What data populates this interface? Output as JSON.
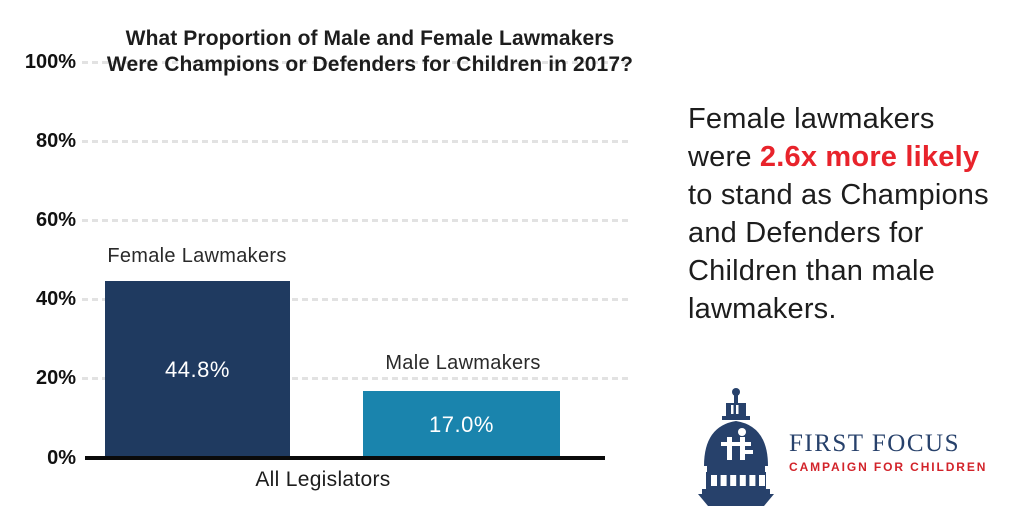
{
  "chart_data": {
    "type": "bar",
    "title": "What Proportion of Male and Female Lawmakers Were Champions or Defenders for Children in 2017?",
    "title_lines": {
      "line1": "What Proportion of Male and Female Lawmakers",
      "line2": "Were Champions or Defenders for Children in 2017?"
    },
    "categories": [
      "All Legislators"
    ],
    "series": [
      {
        "name": "Female Lawmakers",
        "values": [
          44.8
        ],
        "label": "44.8%",
        "color": "#1f3a60"
      },
      {
        "name": "Male Lawmakers",
        "values": [
          17.0
        ],
        "label": "17.0%",
        "color": "#1a84ad"
      }
    ],
    "xlabel": "All Legislators",
    "ylabel": "",
    "ylim": [
      0,
      100
    ],
    "yticks": {
      "t100": "100%",
      "t80": "80%",
      "t60": "60%",
      "t40": "40%",
      "t20": "20%",
      "t0": "0%"
    },
    "grid": "horizontal dashed, light gray",
    "legend": "none, series labeled above bars"
  },
  "annotation": {
    "part1": "Female lawmakers were ",
    "highlight": "2.6x more likely",
    "part2": " to stand as Champions and Defenders for Children than male lawmakers.",
    "highlight_color": "#e8232b",
    "text_color": "#1d1d1d"
  },
  "logo": {
    "icon": "capitol-dome-icon",
    "name": "FIRST FOCUS",
    "tagline": "CAMPAIGN FOR CHILDREN",
    "navy": "#27416b",
    "red": "#d2232a"
  },
  "colors": {
    "background": "#ffffff",
    "female_bar": "#1f3a60",
    "male_bar": "#1a84ad",
    "gridline": "#e2e2e2",
    "axis": "#0a0a0a",
    "accent_red": "#e8232b"
  }
}
